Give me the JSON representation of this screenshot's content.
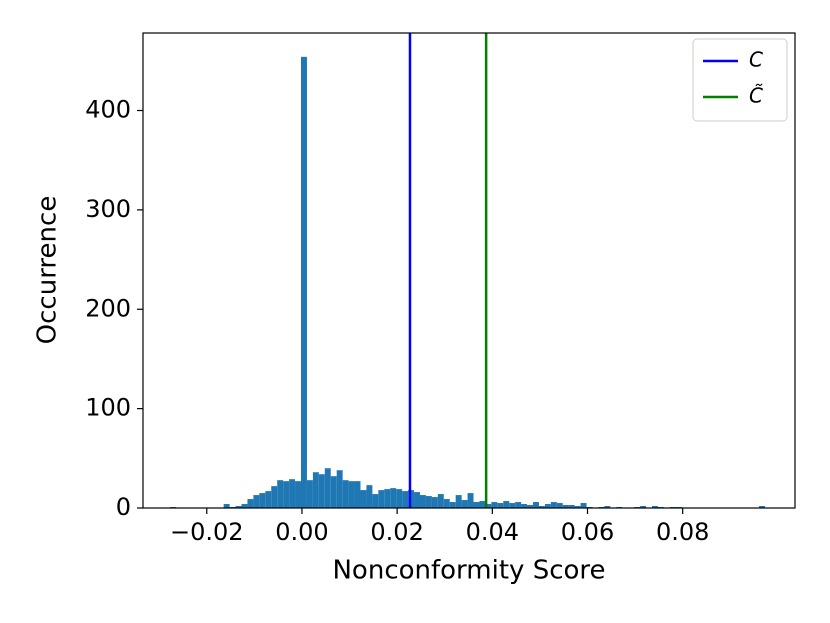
{
  "chart_data": {
    "type": "histogram",
    "xlabel": "Nonconformity Score",
    "ylabel": "Occurrence",
    "color": "#1f77b4",
    "bins": [
      -0.0277,
      -0.02645,
      -0.0252,
      -0.02395,
      -0.0227,
      -0.02145,
      -0.0202,
      -0.01895,
      -0.0177,
      -0.01645,
      -0.0152,
      -0.01395,
      -0.0127,
      -0.01145,
      -0.0102,
      -0.00895,
      -0.0077,
      -0.00645,
      -0.0052,
      -0.00395,
      -0.0027,
      -0.00145,
      -0.0002,
      0.00105,
      0.0023,
      0.00355,
      0.0048,
      0.00605,
      0.0073,
      0.00855,
      0.0098,
      0.01105,
      0.0123,
      0.01355,
      0.0148,
      0.01605,
      0.0173,
      0.01855,
      0.0198,
      0.02105,
      0.0223,
      0.02355,
      0.0248,
      0.02605,
      0.0273,
      0.02855,
      0.0298,
      0.03105,
      0.0323,
      0.03355,
      0.0348,
      0.03605,
      0.0373,
      0.03855,
      0.0398,
      0.04105,
      0.0423,
      0.04355,
      0.0448,
      0.04605,
      0.0473,
      0.04855,
      0.0498,
      0.05105,
      0.0523,
      0.05355,
      0.0548,
      0.05605,
      0.0573,
      0.05855,
      0.0598,
      0.06105,
      0.0623,
      0.06355,
      0.0648,
      0.06605,
      0.0673,
      0.06855,
      0.0698,
      0.07105,
      0.0723,
      0.07355,
      0.0748,
      0.07605,
      0.0773,
      0.07855,
      0.0798,
      0.08105,
      0.0823,
      0.08355,
      0.0848,
      0.08605,
      0.0873,
      0.08855,
      0.0898,
      0.09105,
      0.0923,
      0.09355,
      0.0948,
      0.09605,
      0.0973
    ],
    "counts": [
      1,
      0,
      0,
      0,
      0,
      0,
      0,
      0,
      0,
      4,
      1,
      2,
      4,
      9,
      13,
      15,
      17,
      22,
      28,
      27,
      29,
      27,
      454,
      28,
      36,
      34,
      40,
      32,
      38,
      28,
      27,
      27,
      18,
      23,
      14,
      18,
      19,
      20,
      19,
      17,
      18,
      16,
      13,
      12,
      11,
      14,
      9,
      6,
      13,
      8,
      15,
      6,
      7,
      4,
      6,
      5,
      7,
      5,
      6,
      4,
      3,
      6,
      2,
      4,
      6,
      5,
      3,
      3,
      2,
      5,
      1,
      0,
      1,
      2,
      0,
      1,
      0,
      0,
      1,
      2,
      0,
      2,
      1,
      0,
      1,
      1,
      0,
      0,
      0,
      0,
      0,
      0,
      0,
      0,
      0,
      0,
      0,
      0,
      0,
      2
    ],
    "vlines": [
      {
        "name": "C",
        "color": "#0000ff",
        "x": 0.0227
      },
      {
        "name": "C̃",
        "color": "#008000",
        "x": 0.0387
      }
    ],
    "xlim": [
      -0.0334,
      0.1036
    ],
    "ylim": [
      0,
      478
    ],
    "xticks": [
      {
        "value": -0.02,
        "label": "−0.02"
      },
      {
        "value": 0,
        "label": "0.00"
      },
      {
        "value": 0.02,
        "label": "0.02"
      },
      {
        "value": 0.04,
        "label": "0.04"
      },
      {
        "value": 0.06,
        "label": "0.06"
      },
      {
        "value": 0.08,
        "label": "0.08"
      }
    ],
    "yticks": [
      0,
      100,
      200,
      300,
      400
    ],
    "legend": "upper right",
    "grid": false
  }
}
